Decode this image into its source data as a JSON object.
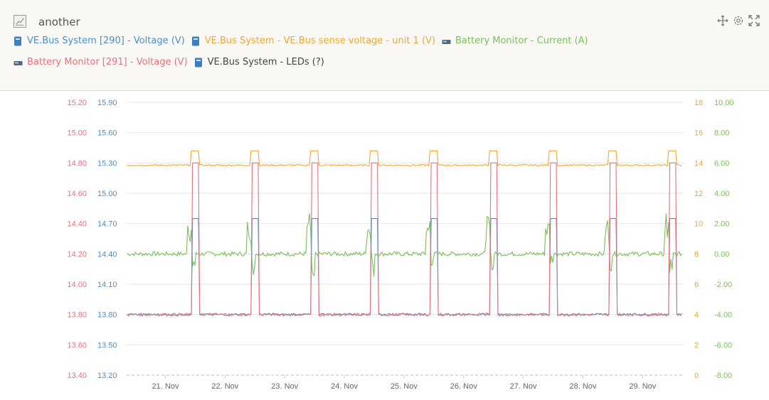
{
  "title": "another",
  "colors": {
    "blue": "#4a90c8",
    "orange": "#f0a830",
    "green": "#7bc05a",
    "pink": "#e9717f",
    "dark": "#444444"
  },
  "icons": {
    "title": "chart-line-icon",
    "vebus": "inverter-device-icon",
    "battery": "battery-monitor-icon",
    "move": "move-icon",
    "settings": "gear-icon",
    "fullscreen": "fullscreen-icon"
  },
  "legend": [
    {
      "label": "VE.Bus System [290] - Voltage (V)",
      "color": "#4a90c8",
      "icon": "vebus"
    },
    {
      "label": "VE.Bus System - VE.Bus sense voltage - unit 1 (V)",
      "color": "#f0a830",
      "icon": "vebus"
    },
    {
      "label": "Battery Monitor - Current (A)",
      "color": "#7bc05a",
      "icon": "battery"
    },
    {
      "label": "Battery Monitor [291] - Voltage (V)",
      "color": "#e9717f",
      "icon": "battery"
    },
    {
      "label": "VE.Bus System - LEDs (?)",
      "color": "#444444",
      "icon": "vebus"
    }
  ],
  "chart_data": {
    "type": "line",
    "x_ticks": [
      "21. Nov",
      "22. Nov",
      "23. Nov",
      "24. Nov",
      "25. Nov",
      "26. Nov",
      "27. Nov",
      "28. Nov",
      "29. Nov"
    ],
    "x_range_days": [
      20.35,
      29.7
    ],
    "grid": "horizontal",
    "axes": {
      "pink": {
        "side": "left",
        "min": 13.4,
        "max": 15.2,
        "ticks": [
          "15.20",
          "15.00",
          "14.80",
          "14.60",
          "14.40",
          "14.20",
          "14.00",
          "13.80",
          "13.60",
          "13.40"
        ]
      },
      "blue": {
        "side": "left",
        "min": 13.2,
        "max": 15.9,
        "ticks": [
          "15.90",
          "15.60",
          "15.30",
          "15.00",
          "14.70",
          "14.40",
          "14.10",
          "13.80",
          "13.50",
          "13.20"
        ]
      },
      "orange": {
        "side": "right",
        "min": 0,
        "max": 18,
        "ticks": [
          "18",
          "16",
          "14",
          "12",
          "10",
          "8",
          "6",
          "4",
          "2",
          "0"
        ]
      },
      "green": {
        "side": "right",
        "min": -8,
        "max": 10,
        "ticks": [
          "10.00",
          "8.00",
          "6.00",
          "4.00",
          "2.00",
          "0.00",
          "-2.00",
          "-4.00",
          "-6.00",
          "-8.00"
        ]
      }
    },
    "pulse_days": [
      21.45,
      22.45,
      23.45,
      24.45,
      25.45,
      26.45,
      27.45,
      28.45,
      29.45
    ],
    "series": [
      {
        "name": "VE.Bus System [290] - Voltage (V)",
        "axis": "blue",
        "baseline": 13.8,
        "peak": 14.75
      },
      {
        "name": "VE.Bus System - VE.Bus sense voltage - unit 1 (V)",
        "axis": "orange",
        "baseline": 13.85,
        "peak": 14.8
      },
      {
        "name": "Battery Monitor - Current (A)",
        "axis": "green",
        "baseline": 0.0,
        "peak": 2.6
      },
      {
        "name": "Battery Monitor [291] - Voltage (V)",
        "axis": "pink",
        "baseline": 13.8,
        "peak": 14.8
      }
    ]
  }
}
